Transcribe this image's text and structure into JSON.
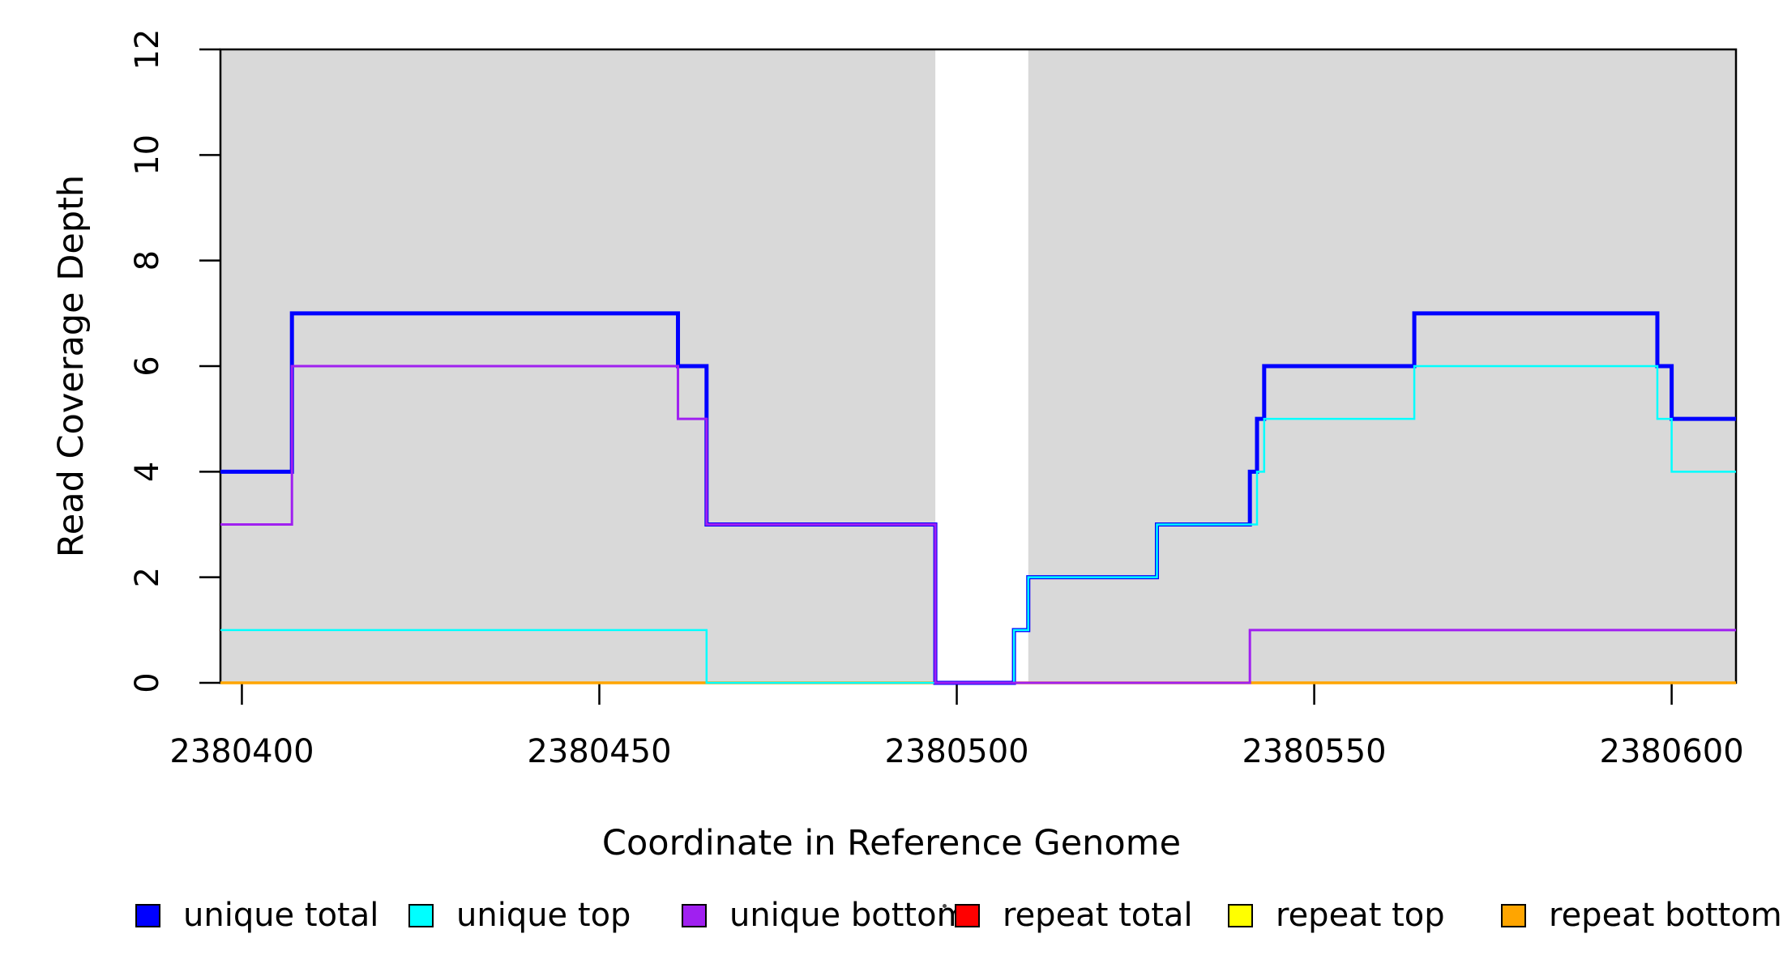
{
  "chart_data": {
    "type": "line",
    "subtype": "step",
    "title": "",
    "xlabel": "Coordinate in Reference Genome",
    "ylabel": "Read Coverage Depth",
    "xlim": [
      2380397,
      2380609
    ],
    "ylim": [
      0,
      12
    ],
    "x_ticks": [
      2380400,
      2380450,
      2380500,
      2380550,
      2380600
    ],
    "y_ticks": [
      0,
      2,
      4,
      6,
      8,
      10,
      12
    ],
    "grid": false,
    "frame_color": "#000000",
    "background_shading": {
      "color": "#d9d9d9",
      "regions": [
        [
          2380397,
          2380497
        ],
        [
          2380510,
          2380609
        ]
      ]
    },
    "series": [
      {
        "name": "repeat total",
        "color": "#FF0000",
        "width": 2.5,
        "steps": [
          [
            2380397,
            0
          ]
        ]
      },
      {
        "name": "repeat top",
        "color": "#FFFF00",
        "width": 2.5,
        "steps": [
          [
            2380397,
            0
          ]
        ]
      },
      {
        "name": "repeat bottom",
        "color": "#FFA500",
        "width": 3.5,
        "steps": [
          [
            2380397,
            0
          ]
        ]
      },
      {
        "name": "unique total",
        "color": "#0000FF",
        "width": 5,
        "steps": [
          [
            2380397,
            4
          ],
          [
            2380407,
            7
          ],
          [
            2380461,
            6
          ],
          [
            2380465,
            3
          ],
          [
            2380497,
            0
          ],
          [
            2380508,
            1
          ],
          [
            2380510,
            2
          ],
          [
            2380528,
            3
          ],
          [
            2380541,
            4
          ],
          [
            2380542,
            5
          ],
          [
            2380543,
            6
          ],
          [
            2380564,
            7
          ],
          [
            2380598,
            6
          ],
          [
            2380600,
            5
          ]
        ]
      },
      {
        "name": "unique top",
        "color": "#00FFFF",
        "width": 2.5,
        "steps": [
          [
            2380397,
            1
          ],
          [
            2380465,
            0
          ],
          [
            2380508,
            1
          ],
          [
            2380510,
            2
          ],
          [
            2380528,
            3
          ],
          [
            2380542,
            4
          ],
          [
            2380543,
            5
          ],
          [
            2380564,
            6
          ],
          [
            2380598,
            5
          ],
          [
            2380600,
            4
          ]
        ]
      },
      {
        "name": "unique bottom",
        "color": "#A020F0",
        "width": 3,
        "steps": [
          [
            2380397,
            3
          ],
          [
            2380407,
            6
          ],
          [
            2380461,
            5
          ],
          [
            2380465,
            3
          ],
          [
            2380497,
            0
          ],
          [
            2380541,
            1
          ]
        ]
      }
    ],
    "legend": {
      "position": "bottom",
      "items": [
        {
          "label": "unique total",
          "color": "#0000FF"
        },
        {
          "label": "unique top",
          "color": "#00FFFF"
        },
        {
          "label": "unique bottom",
          "color": "#A020F0"
        },
        {
          "label": "repeat total",
          "color": "#FF0000"
        },
        {
          "label": "repeat top",
          "color": "#FFFF00"
        },
        {
          "label": "repeat bottom",
          "color": "#FFA500"
        }
      ]
    }
  }
}
